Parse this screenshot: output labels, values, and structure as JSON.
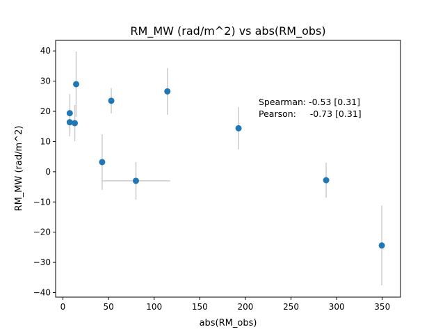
{
  "chart_data": {
    "type": "scatter",
    "title": "RM_MW (rad/m^2) vs abs(RM_obs)",
    "xlabel": "abs(RM_obs)",
    "ylabel": "RM_MW (rad/m^2)",
    "xlim": [
      -8,
      370
    ],
    "ylim": [
      -41.5,
      43.5
    ],
    "xticks": [
      0,
      50,
      100,
      150,
      200,
      250,
      300,
      350
    ],
    "yticks": [
      -40,
      -30,
      -20,
      -10,
      0,
      10,
      20,
      30,
      40
    ],
    "grid": false,
    "legend": "none",
    "marker_color": "#1f77b4",
    "errorbar_color": "#cccccc",
    "points": [
      {
        "x": 7.5,
        "y": 19.4,
        "yerr": 6.3,
        "xerr": 0
      },
      {
        "x": 7.5,
        "y": 16.4,
        "yerr": 4.7,
        "xerr": 0
      },
      {
        "x": 13.0,
        "y": 16.1,
        "yerr": 6.0,
        "xerr": 0
      },
      {
        "x": 14.5,
        "y": 29.0,
        "yerr": 10.8,
        "xerr": 0
      },
      {
        "x": 43.0,
        "y": 3.2,
        "yerr": 9.2,
        "xerr": 0
      },
      {
        "x": 53.0,
        "y": 23.5,
        "yerr": 4.2,
        "xerr": 0
      },
      {
        "x": 80.0,
        "y": -3.0,
        "yerr": 6.2,
        "xerr": 37.5
      },
      {
        "x": 114.5,
        "y": 26.6,
        "yerr": 7.7,
        "xerr": 0
      },
      {
        "x": 192.5,
        "y": 14.4,
        "yerr": 7.0,
        "xerr": 0
      },
      {
        "x": 288.5,
        "y": -2.8,
        "yerr": 5.8,
        "xerr": 0
      },
      {
        "x": 349.5,
        "y": -24.4,
        "yerr": 13.2,
        "xerr": 0
      }
    ],
    "annotations": [
      {
        "text": "Spearman: -0.53 [0.31]"
      },
      {
        "text": "Pearson:     -0.73 [0.31]"
      }
    ]
  }
}
